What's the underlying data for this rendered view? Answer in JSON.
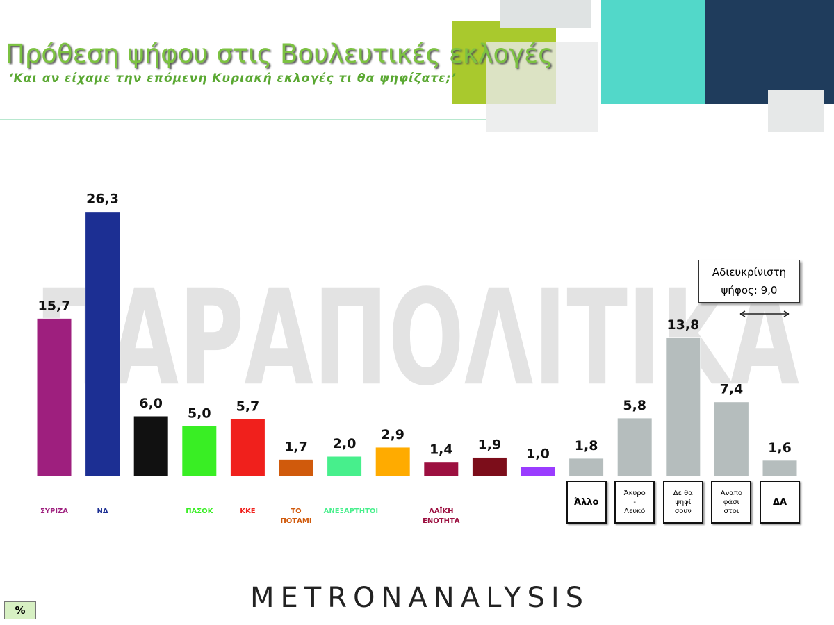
{
  "chart_data": {
    "type": "bar",
    "title": "Πρόθεση ψήφου στις Βουλευτικές εκλογές",
    "subtitle": "‘Και αν είχαμε την επόμενη Κυριακή εκλογές τι θα ψηφίζατε;’",
    "watermark": "ΠΑΡΑΠΟΛΙΤΙΚΑ",
    "annotation": "Αδιευκρίνιστη\nψήφος: 9,0",
    "source": "METRONANALYSIS",
    "unit": "%",
    "categories": [
      "ΣΥΡΙΖΑ",
      "ΝΔ",
      null,
      "ΠΑΣΟΚ",
      "ΚΚΕ",
      "ΤΟ ΠΟΤΑΜΙ",
      "ΑΝΕΞΑΡΤΗΤΟΙ",
      null,
      "ΛΑΪΚΗ ΕΝΟΤΗΤΑ",
      null,
      null,
      "Άλλο",
      "Άκυρο\n-\nΛευκό",
      "Δε θα\nψηφί\nσουν",
      "Αναπο\nφάσι\nστοι",
      "ΔΑ"
    ],
    "values": [
      15.7,
      26.3,
      6.0,
      5.0,
      5.7,
      1.7,
      2.0,
      2.9,
      1.4,
      1.9,
      1.0,
      1.8,
      5.8,
      13.8,
      7.4,
      1.6
    ],
    "value_labels": [
      "15,7",
      "26,3",
      "6,0",
      "5,0",
      "5,7",
      "1,7",
      "2,0",
      "2,9",
      "1,4",
      "1,9",
      "1,0",
      "1,8",
      "5,8",
      "13,8",
      "7,4",
      "1,6"
    ],
    "colors": [
      "#9e1f7e",
      "#1c2f93",
      "#111111",
      "#39ee24",
      "#f0201c",
      "#d05a0c",
      "#47ef8c",
      "#ffab00",
      "#9c1040",
      "#7c0d1a",
      "#9a3cff",
      "#b5bdbd",
      "#b5bdbd",
      "#b5bdbd",
      "#b5bdbd",
      "#b5bdbd"
    ],
    "ylim": [
      0,
      30
    ]
  }
}
